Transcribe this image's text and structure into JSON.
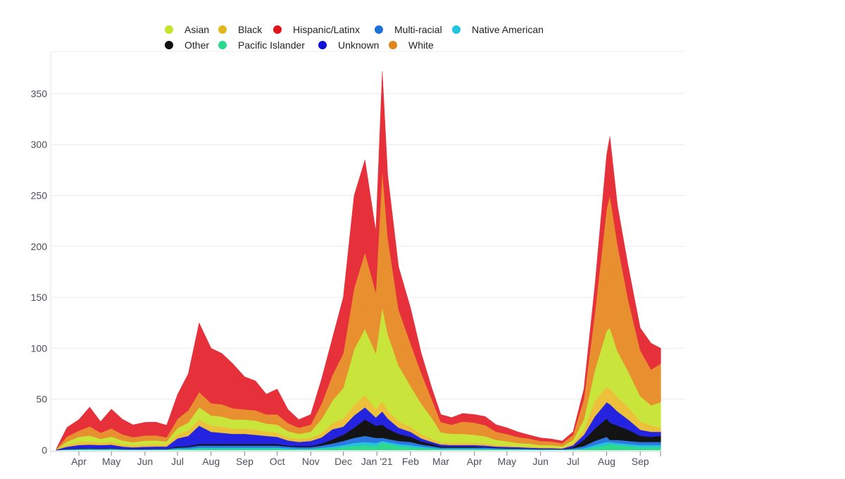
{
  "chart_data": {
    "type": "area",
    "stacked": true,
    "title": "",
    "xlabel": "",
    "ylabel": "",
    "ylim": [
      0,
      385
    ],
    "yticks": [
      0,
      50,
      100,
      150,
      200,
      250,
      300,
      350
    ],
    "grid": true,
    "legend_position": "top",
    "xtick_labels": [
      "Apr",
      "May",
      "Jun",
      "Jul",
      "Aug",
      "Sep",
      "Oct",
      "Nov",
      "Dec",
      "Jan '21",
      "Feb",
      "Mar",
      "Apr",
      "May",
      "Jun",
      "Jul",
      "Aug",
      "Sep"
    ],
    "xtick_dates": [
      "2020-04-01",
      "2020-05-01",
      "2020-06-01",
      "2020-07-01",
      "2020-08-01",
      "2020-09-01",
      "2020-10-01",
      "2020-11-01",
      "2020-12-01",
      "2021-01-01",
      "2021-02-01",
      "2021-03-01",
      "2021-04-01",
      "2021-05-01",
      "2021-06-01",
      "2021-07-01",
      "2021-08-01",
      "2021-09-01"
    ],
    "x": [
      "2020-03-11",
      "2020-03-21",
      "2020-04-01",
      "2020-04-11",
      "2020-04-21",
      "2020-05-01",
      "2020-05-11",
      "2020-05-21",
      "2020-06-01",
      "2020-06-11",
      "2020-06-21",
      "2020-07-01",
      "2020-07-11",
      "2020-07-21",
      "2020-08-01",
      "2020-08-11",
      "2020-08-21",
      "2020-09-01",
      "2020-09-11",
      "2020-09-21",
      "2020-10-01",
      "2020-10-11",
      "2020-10-21",
      "2020-11-01",
      "2020-11-11",
      "2020-11-21",
      "2020-12-01",
      "2020-12-11",
      "2020-12-21",
      "2020-12-31",
      "2021-01-06",
      "2021-01-11",
      "2021-01-21",
      "2021-02-01",
      "2021-02-11",
      "2021-02-21",
      "2021-03-01",
      "2021-03-11",
      "2021-03-21",
      "2021-04-01",
      "2021-04-11",
      "2021-04-21",
      "2021-05-01",
      "2021-05-11",
      "2021-05-21",
      "2021-06-01",
      "2021-06-11",
      "2021-06-21",
      "2021-07-01",
      "2021-07-11",
      "2021-07-21",
      "2021-08-01",
      "2021-08-04",
      "2021-08-11",
      "2021-08-21",
      "2021-09-01",
      "2021-09-11",
      "2021-09-20"
    ],
    "series": [
      {
        "name": "Pacific Islander",
        "color": "#2fd98e",
        "values": [
          0,
          0.3,
          0.4,
          0.5,
          0.4,
          0.5,
          0.4,
          0.3,
          0.3,
          0.4,
          0.4,
          1,
          1,
          1.5,
          1.5,
          1.5,
          1.5,
          1.5,
          1.5,
          1.5,
          1.5,
          1,
          1,
          1,
          1.5,
          2,
          3,
          4,
          5,
          4,
          7,
          6,
          4,
          3,
          2,
          1.5,
          1,
          1,
          1,
          1,
          1,
          0.8,
          0.7,
          0.6,
          0.5,
          0.4,
          0.4,
          0.3,
          0.5,
          1,
          3,
          5,
          6,
          5,
          4,
          3,
          3,
          3
        ]
      },
      {
        "name": "Native American",
        "color": "#26c2de",
        "values": [
          0,
          0.2,
          0.3,
          0.3,
          0.3,
          0.3,
          0.2,
          0.2,
          0.2,
          0.2,
          0.2,
          0.5,
          0.5,
          1,
          1,
          1,
          1,
          1,
          1,
          1,
          1,
          1,
          0.5,
          0.5,
          1,
          1.5,
          2,
          3,
          3,
          3,
          2,
          2,
          2,
          2,
          1.5,
          1,
          0.5,
          0.5,
          0.5,
          0.5,
          0.5,
          0.4,
          0.3,
          0.3,
          0.3,
          0.2,
          0.2,
          0.2,
          0.3,
          1,
          2,
          3,
          2,
          2,
          2,
          2,
          2,
          2
        ]
      },
      {
        "name": "Multi-racial",
        "color": "#2a78e0",
        "values": [
          0,
          0.5,
          0.8,
          1,
          0.8,
          1,
          0.6,
          0.5,
          0.5,
          0.6,
          0.6,
          1,
          1.5,
          2,
          2,
          2,
          2,
          2,
          2,
          2,
          2,
          1.5,
          1.5,
          1.5,
          2,
          3,
          4,
          5,
          6,
          5,
          3,
          3,
          3,
          3,
          2,
          1.5,
          1,
          1,
          1,
          1,
          1,
          0.8,
          0.7,
          0.6,
          0.5,
          0.4,
          0.4,
          0.3,
          1,
          2,
          4,
          5,
          2,
          3,
          3,
          3,
          3,
          3
        ]
      },
      {
        "name": "Other",
        "color": "#141414",
        "values": [
          0,
          0.3,
          0.5,
          0.5,
          0.5,
          0.5,
          0.3,
          0.3,
          0.3,
          0.3,
          0.3,
          1,
          1,
          1.5,
          1.5,
          1.5,
          1.5,
          1.5,
          1.5,
          1.5,
          1.5,
          1,
          1,
          1,
          2,
          4,
          6,
          10,
          16,
          12,
          13,
          10,
          7,
          5,
          3,
          2,
          1,
          1,
          1,
          1,
          0.5,
          0.5,
          0.5,
          0.4,
          0.3,
          0.3,
          0.3,
          0.2,
          1,
          6,
          12,
          18,
          17,
          14,
          11,
          6,
          5,
          6
        ]
      },
      {
        "name": "Unknown",
        "color": "#2424e0",
        "values": [
          0.5,
          2,
          3,
          3,
          3,
          3,
          2,
          1.5,
          2,
          2,
          2,
          8,
          10,
          18,
          12,
          11,
          10,
          10,
          9,
          8,
          7,
          5,
          4,
          5,
          6,
          10,
          8,
          12,
          12,
          8,
          13,
          10,
          6,
          5,
          3,
          2,
          2,
          1.5,
          1.5,
          1.5,
          1.5,
          1,
          1,
          1,
          0.8,
          0.7,
          0.6,
          0.5,
          2,
          5,
          12,
          16,
          18,
          14,
          10,
          6,
          5,
          4
        ]
      },
      {
        "name": "Black",
        "color": "#ecc03a",
        "values": [
          0,
          2,
          3,
          3,
          2,
          3,
          2,
          2,
          2,
          2,
          2,
          4,
          5,
          6,
          6,
          6,
          5,
          5,
          5,
          4,
          4,
          3,
          3,
          3,
          4,
          6,
          8,
          10,
          12,
          8,
          10,
          8,
          6,
          5,
          4,
          3,
          2,
          2,
          2,
          2,
          2,
          1.5,
          1.5,
          1,
          1,
          1,
          1,
          0.8,
          2,
          5,
          15,
          15,
          15,
          14,
          12,
          8,
          6,
          4
        ]
      },
      {
        "name": "Asian",
        "color": "#c9e43a",
        "values": [
          0,
          3,
          5,
          6,
          4,
          5,
          4,
          3,
          4,
          4,
          3,
          6,
          8,
          12,
          10,
          10,
          9,
          9,
          9,
          8,
          8,
          6,
          5,
          6,
          14,
          22,
          30,
          55,
          65,
          55,
          92,
          75,
          55,
          40,
          30,
          20,
          10,
          9,
          9,
          8,
          7,
          5,
          4,
          3,
          3,
          2,
          2,
          1.5,
          3,
          10,
          30,
          55,
          60,
          45,
          35,
          25,
          20,
          25
        ]
      },
      {
        "name": "White",
        "color": "#e8902f",
        "values": [
          0.5,
          5,
          6,
          9,
          6,
          8,
          6,
          5,
          5,
          5,
          4,
          9,
          12,
          15,
          12,
          12,
          11,
          10,
          10,
          9,
          10,
          8,
          6,
          7,
          15,
          25,
          34,
          60,
          75,
          60,
          135,
          95,
          55,
          42,
          30,
          18,
          10,
          9,
          12,
          12,
          11,
          8,
          7,
          6,
          5,
          4,
          3.5,
          3,
          5,
          20,
          55,
          120,
          130,
          105,
          70,
          45,
          35,
          38
        ]
      },
      {
        "name": "Hispanic/Latinx",
        "color": "#e6303a",
        "values": [
          0,
          9,
          11,
          19,
          11,
          19,
          15,
          12,
          13,
          13,
          12,
          24,
          36,
          68,
          54,
          50,
          44,
          32,
          29,
          20,
          25,
          13.5,
          8,
          10,
          24.5,
          36.5,
          55,
          91,
          91,
          60,
          97,
          61,
          42,
          35,
          19.5,
          11,
          7.5,
          7,
          8,
          8,
          8.5,
          7,
          6.3,
          5.1,
          3.6,
          3,
          2.6,
          2.2,
          3.2,
          10,
          27,
          53,
          58,
          38,
          33,
          22,
          26,
          15
        ]
      }
    ]
  },
  "legend": {
    "items": [
      {
        "label": "Asian",
        "color": "#c5e32a"
      },
      {
        "label": "Black",
        "color": "#e2b61c"
      },
      {
        "label": "Hispanic/Latinx",
        "color": "#e0141c"
      },
      {
        "label": "Multi-racial",
        "color": "#1f70d8"
      },
      {
        "label": "Native American",
        "color": "#22c3dd"
      },
      {
        "label": "Other",
        "color": "#111111"
      },
      {
        "label": "Pacific Islander",
        "color": "#2bd98c"
      },
      {
        "label": "Unknown",
        "color": "#1010d6"
      },
      {
        "label": "White",
        "color": "#e2841c"
      }
    ]
  }
}
